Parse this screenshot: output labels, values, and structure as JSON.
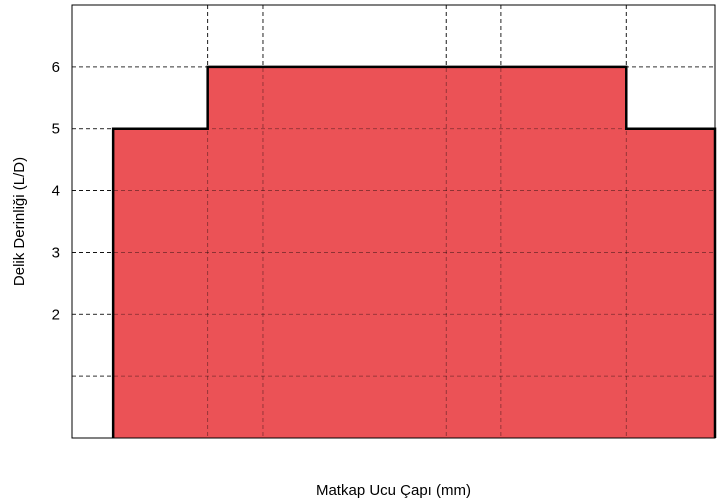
{
  "chart_data": {
    "type": "area",
    "xlabel": "Matkap Ucu Çapı (mm)",
    "ylabel": "Delik Derinliği (L/D)",
    "x_tick_labels": [],
    "y_ticks": [
      2,
      3,
      4,
      5,
      6
    ],
    "ylim": [
      0,
      7
    ],
    "xlim": [
      0,
      1
    ],
    "grid": true,
    "legend": "none",
    "fill_color": "#eb5256",
    "series": [
      {
        "points": [
          {
            "x": 0.064,
            "y": 5
          },
          {
            "x": 0.211,
            "y": 5
          },
          {
            "x": 0.211,
            "y": 6
          },
          {
            "x": 0.862,
            "y": 6
          },
          {
            "x": 0.862,
            "y": 5
          },
          {
            "x": 1.0,
            "y": 5
          }
        ]
      }
    ],
    "x_gridlines": [
      0.211,
      0.297,
      0.582,
      0.667,
      0.862
    ],
    "y_gridlines": [
      1,
      2,
      3,
      4,
      5,
      6
    ]
  }
}
